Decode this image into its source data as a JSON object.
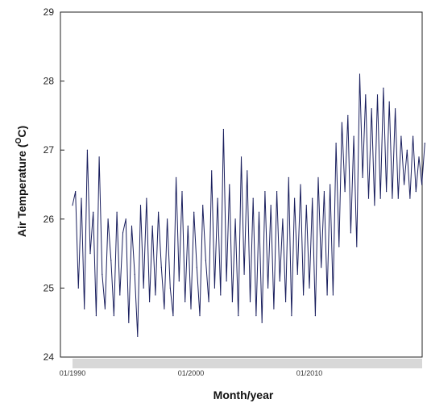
{
  "chart_data": {
    "type": "line",
    "xlabel": "Month/year",
    "ylabel_prefix": "Air Temperature (",
    "ylabel_sup": "O",
    "ylabel_suffix": "C)",
    "ylim": [
      24,
      29
    ],
    "y_ticks": [
      "24",
      "25",
      "26",
      "27",
      "28",
      "29"
    ],
    "x_tick_labels": [
      "01/1990",
      "01/2000",
      "01/2010"
    ],
    "x_tick_dates": [
      "1990-01",
      "2000-01",
      "2010-01"
    ],
    "grid": false,
    "line_color": "#1a1f5e",
    "axis_band_color": "#d8d8d8",
    "series": [
      {
        "x": [
          "1990-01",
          "1990-04",
          "1990-07",
          "1990-10",
          "1991-01",
          "1991-04",
          "1991-07",
          "1991-10",
          "1992-01",
          "1992-04",
          "1992-07",
          "1992-10",
          "1993-01",
          "1993-04",
          "1993-07",
          "1993-10",
          "1994-01",
          "1994-04",
          "1994-07",
          "1994-10",
          "1995-01",
          "1995-04",
          "1995-07",
          "1995-10",
          "1996-01",
          "1996-04",
          "1996-07",
          "1996-10",
          "1997-01",
          "1997-04",
          "1997-07",
          "1997-10",
          "1998-01",
          "1998-04",
          "1998-07",
          "1998-10",
          "1999-01",
          "1999-04",
          "1999-07",
          "1999-10",
          "2000-01",
          "2000-04",
          "2000-07",
          "2000-10",
          "2001-01",
          "2001-04",
          "2001-07",
          "2001-10",
          "2002-01",
          "2002-04",
          "2002-07",
          "2002-10",
          "2003-01",
          "2003-04",
          "2003-07",
          "2003-10",
          "2004-01",
          "2004-04",
          "2004-07",
          "2004-10",
          "2005-01",
          "2005-04",
          "2005-07",
          "2005-10",
          "2006-01",
          "2006-04",
          "2006-07",
          "2006-10",
          "2007-01",
          "2007-04",
          "2007-07",
          "2007-10",
          "2008-01",
          "2008-04",
          "2008-07",
          "2008-10",
          "2009-01",
          "2009-04",
          "2009-07",
          "2009-10",
          "2010-01",
          "2010-04",
          "2010-07",
          "2010-10",
          "2011-01",
          "2011-04",
          "2011-07",
          "2011-10",
          "2012-01",
          "2012-04",
          "2012-07",
          "2012-10",
          "2013-01",
          "2013-04",
          "2013-07",
          "2013-10",
          "2014-01",
          "2014-04",
          "2014-07",
          "2014-10",
          "2015-01",
          "2015-04",
          "2015-07",
          "2015-10",
          "2016-01",
          "2016-04",
          "2016-07",
          "2016-10",
          "2017-01",
          "2017-04",
          "2017-07",
          "2017-10",
          "2018-01",
          "2018-04",
          "2018-07",
          "2018-10",
          "2019-01",
          "2019-04",
          "2019-07",
          "2019-10"
        ],
        "values": [
          26.2,
          26.4,
          25.0,
          26.3,
          24.7,
          27.0,
          25.5,
          26.1,
          24.6,
          26.9,
          25.2,
          24.7,
          26.0,
          25.4,
          24.6,
          26.1,
          24.9,
          25.8,
          26.0,
          24.5,
          25.9,
          25.2,
          24.3,
          26.2,
          25.0,
          26.3,
          24.8,
          25.9,
          24.9,
          26.1,
          25.3,
          24.7,
          26.0,
          25.0,
          24.6,
          26.6,
          25.1,
          26.4,
          24.8,
          25.9,
          24.7,
          26.1,
          25.3,
          24.6,
          26.2,
          25.4,
          24.8,
          26.7,
          25.0,
          26.3,
          24.9,
          27.3,
          25.1,
          26.5,
          24.8,
          26.0,
          24.6,
          26.9,
          25.2,
          26.7,
          24.8,
          26.3,
          24.6,
          26.1,
          24.5,
          26.4,
          25.0,
          26.2,
          24.7,
          26.4,
          25.1,
          26.0,
          24.8,
          26.6,
          24.6,
          26.3,
          25.2,
          26.5,
          24.9,
          26.2,
          25.0,
          26.3,
          24.6,
          26.6,
          25.3,
          26.4,
          24.9,
          26.5,
          24.9,
          27.1,
          25.6,
          27.4,
          26.4,
          27.5,
          25.8,
          27.2,
          25.6,
          28.1,
          26.6,
          27.8,
          26.3,
          27.6,
          26.2,
          27.8,
          26.3,
          27.9,
          26.4,
          27.7,
          26.3,
          27.6,
          26.3,
          27.2,
          26.5,
          27.0,
          26.3,
          27.2,
          26.4,
          26.9,
          26.5,
          27.1
        ]
      }
    ]
  }
}
